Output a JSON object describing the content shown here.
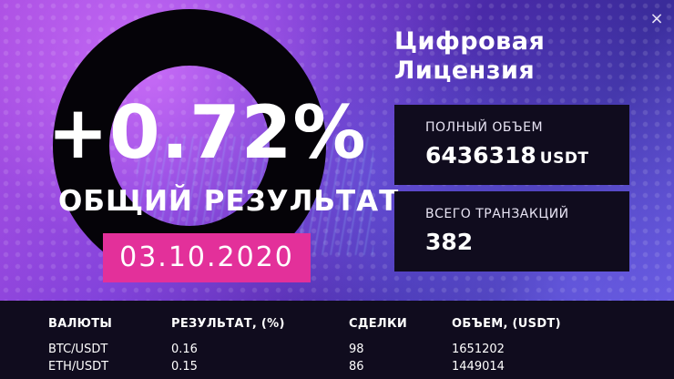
{
  "window": {
    "close_symbol": "×"
  },
  "hero": {
    "percent": "+0.72%",
    "label": "ОБЩИЙ РЕЗУЛЬТАТ",
    "date": "03.10.2020"
  },
  "license": {
    "title_line1": "Цифровая",
    "title_line2": "Лицензия"
  },
  "cards": [
    {
      "label": "ПОЛНЫЙ ОБЪЕМ",
      "value": "6436318",
      "unit": "USDT"
    },
    {
      "label": "ВСЕГО ТРАНЗАКЦИЙ",
      "value": "382",
      "unit": ""
    }
  ],
  "table": {
    "headers": [
      "ВАЛЮТЫ",
      "РЕЗУЛЬТАТ, (%)",
      "СДЕЛКИ",
      "ОБЪЕМ, (USDT)"
    ],
    "rows": [
      [
        "BTC/USDT",
        "0.16",
        "98",
        "1651202"
      ],
      [
        "ETH/USDT",
        "0.15",
        "86",
        "1449014"
      ]
    ]
  },
  "colors": {
    "accent_pink": "#e3309a",
    "panel_dark": "#100c1e",
    "ring_black": "#050308"
  },
  "icons": {
    "close": "close-icon"
  }
}
